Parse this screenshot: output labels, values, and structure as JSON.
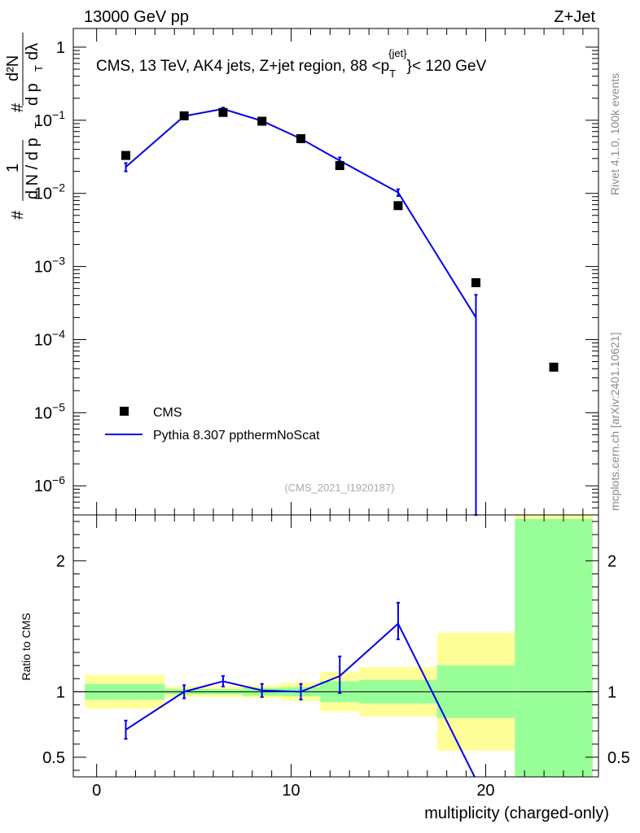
{
  "header": {
    "left": "13000 GeV pp",
    "right": "Z+Jet"
  },
  "chart_data": [
    {
      "type": "scatter",
      "panel": "main",
      "title": "CMS, 13 TeV, AK4 jets, Z+jet region, 88 <p_T^{jet}< 120 GeV",
      "title_main": "CMS, 13 TeV, AK4 jets, Z+jet region, 88 <p",
      "title_sub": "T",
      "title_sup": "{jet}",
      "title_tail": "}< 120 GeV",
      "ylabel": "1/dN/dp_T # d²N/dp_T dλ",
      "ylabel_parts": {
        "hash": "#",
        "one": "1",
        "dn": "d N / d p",
        "t": "T",
        "d2n": "d²N",
        "dpt": "d p",
        "dl": "dλ"
      },
      "yscale": "log",
      "ylim": [
        4e-07,
        1.8
      ],
      "xlim": [
        -1.2,
        25.8
      ],
      "yticks": [
        {
          "v": 1,
          "base": "1",
          "exp": ""
        },
        {
          "v": 0.1,
          "base": "10",
          "exp": "−1"
        },
        {
          "v": 0.01,
          "base": "10",
          "exp": "−2"
        },
        {
          "v": 0.001,
          "base": "10",
          "exp": "−3"
        },
        {
          "v": 0.0001,
          "base": "10",
          "exp": "−4"
        },
        {
          "v": 1e-05,
          "base": "10",
          "exp": "−5"
        },
        {
          "v": 1e-06,
          "base": "10",
          "exp": "−6"
        }
      ],
      "legend": [
        {
          "label": "CMS",
          "marker": "square",
          "color": "#000000"
        },
        {
          "label": "Pythia 8.307 ppthermNoScat",
          "marker": "line",
          "color": "#0000ee"
        }
      ],
      "legend_position": "lower-left",
      "watermark": "(CMS_2021_I1920187)",
      "series": [
        {
          "name": "CMS",
          "x": [
            1.5,
            4.5,
            6.5,
            8.5,
            10.5,
            12.5,
            15.5,
            19.5,
            23.5
          ],
          "y": [
            0.033,
            0.115,
            0.128,
            0.097,
            0.056,
            0.024,
            0.0068,
            0.0006,
            4.2e-05
          ]
        },
        {
          "name": "Pythia 8.307 ppthermNoScat",
          "x": [
            1.5,
            4.5,
            6.5,
            8.5,
            10.5,
            12.5,
            15.5,
            19.5
          ],
          "y": [
            0.023,
            0.114,
            0.143,
            0.098,
            0.056,
            0.028,
            0.0103,
            0.0002
          ],
          "yerr_lo": [
            0.02,
            0.109,
            0.137,
            0.093,
            0.053,
            0.025,
            0.0092,
            1e-07
          ],
          "yerr_hi": [
            0.026,
            0.119,
            0.149,
            0.103,
            0.059,
            0.031,
            0.0114,
            0.00041
          ]
        }
      ]
    },
    {
      "type": "line",
      "panel": "ratio",
      "ylabel": "Ratio to CMS",
      "xlabel": "multiplicity (charged-only)",
      "ylim": [
        0.35,
        2.35
      ],
      "xlim": [
        -1.2,
        25.8
      ],
      "yticks": [
        {
          "v": 0.5,
          "label": "0.5"
        },
        {
          "v": 1,
          "label": "1"
        },
        {
          "v": 2,
          "label": "2"
        }
      ],
      "xticks": [
        {
          "v": 0,
          "label": "0"
        },
        {
          "v": 10,
          "label": "10"
        },
        {
          "v": 20,
          "label": "20"
        }
      ],
      "bands_outer": [
        {
          "x0": -0.6,
          "x1": 3.5,
          "lo": 0.87,
          "hi": 1.13
        },
        {
          "x0": 3.5,
          "x1": 5.5,
          "lo": 0.96,
          "hi": 1.04
        },
        {
          "x0": 5.5,
          "x1": 7.5,
          "lo": 0.96,
          "hi": 1.04
        },
        {
          "x0": 7.5,
          "x1": 9.5,
          "lo": 0.95,
          "hi": 1.05
        },
        {
          "x0": 9.5,
          "x1": 11.5,
          "lo": 0.93,
          "hi": 1.07
        },
        {
          "x0": 11.5,
          "x1": 13.5,
          "lo": 0.85,
          "hi": 1.15
        },
        {
          "x0": 13.5,
          "x1": 17.5,
          "lo": 0.81,
          "hi": 1.19
        },
        {
          "x0": 17.5,
          "x1": 21.5,
          "lo": 0.55,
          "hi": 1.45
        },
        {
          "x0": 21.5,
          "x1": 25.5,
          "lo": 0.0,
          "hi": 2.6
        }
      ],
      "bands_inner": [
        {
          "x0": -0.6,
          "x1": 3.5,
          "lo": 0.94,
          "hi": 1.06
        },
        {
          "x0": 3.5,
          "x1": 5.5,
          "lo": 0.98,
          "hi": 1.02
        },
        {
          "x0": 5.5,
          "x1": 7.5,
          "lo": 0.98,
          "hi": 1.02
        },
        {
          "x0": 7.5,
          "x1": 9.5,
          "lo": 0.97,
          "hi": 1.03
        },
        {
          "x0": 9.5,
          "x1": 11.5,
          "lo": 0.965,
          "hi": 1.035
        },
        {
          "x0": 11.5,
          "x1": 13.5,
          "lo": 0.92,
          "hi": 1.08
        },
        {
          "x0": 13.5,
          "x1": 17.5,
          "lo": 0.91,
          "hi": 1.09
        },
        {
          "x0": 17.5,
          "x1": 21.5,
          "lo": 0.8,
          "hi": 1.2
        },
        {
          "x0": 21.5,
          "x1": 25.5,
          "lo": 0.0,
          "hi": 2.32
        }
      ],
      "series": [
        {
          "name": "Pythia 8.307 ppthermNoScat / CMS",
          "x": [
            1.5,
            4.5,
            6.5,
            8.5,
            10.5,
            12.5,
            15.5,
            19.5
          ],
          "y": [
            0.71,
            1.0,
            1.08,
            1.01,
            1.0,
            1.12,
            1.52,
            0.33
          ],
          "yerr_lo": [
            0.64,
            0.95,
            1.04,
            0.96,
            0.94,
            0.99,
            1.4,
            0.0
          ],
          "yerr_hi": [
            0.78,
            1.05,
            1.12,
            1.06,
            1.06,
            1.27,
            1.68,
            0.66
          ]
        }
      ]
    }
  ],
  "side_labels": {
    "rivet": "Rivet 4.1.0,  100k events",
    "mcplots": "mcplots.cern.ch [arXiv:2401.10621]"
  },
  "colors": {
    "data": "#000000",
    "mc": "#0000ee",
    "band_outer": "#ffff99",
    "band_inner": "#99ff99",
    "side_text": "#888888",
    "watermark": "#aaaaaa"
  }
}
